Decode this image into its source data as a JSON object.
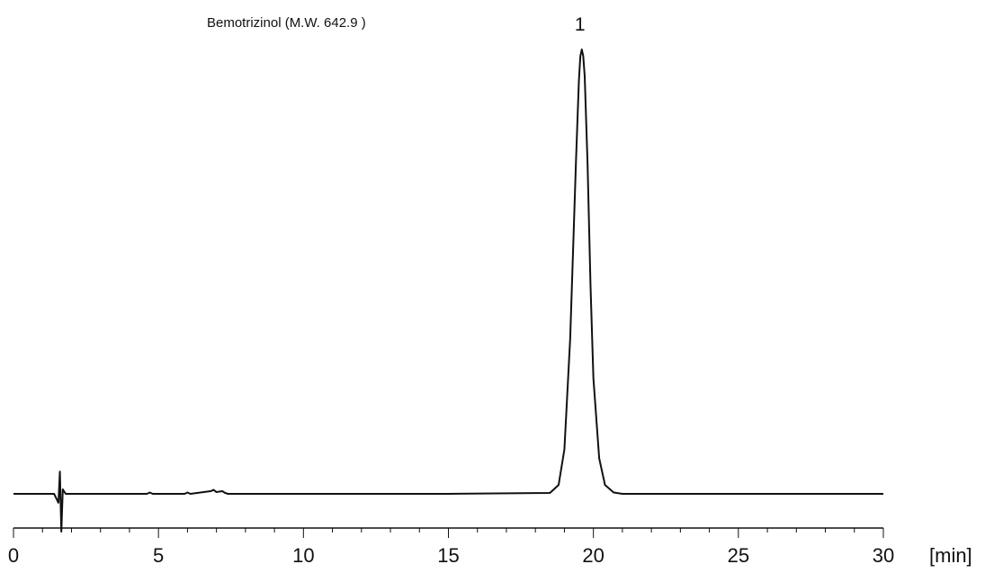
{
  "chart_data": {
    "type": "line",
    "compound_label": "Bemotrizinol (M.W. 642.9 )",
    "x_unit": "[min]",
    "xlim": [
      0,
      30
    ],
    "x_ticks": [
      0,
      5,
      10,
      15,
      20,
      25,
      30
    ],
    "x_minor_step": 1,
    "ylim": [
      -0.085,
      1.0
    ],
    "baseline": 0,
    "peaks": [
      {
        "label": "1",
        "time": 19.6,
        "height": 1.0
      }
    ],
    "series": [
      {
        "color": "#111111",
        "x": [
          0,
          1.4,
          1.55,
          1.6,
          1.65,
          1.7,
          1.8,
          2.0,
          4.6,
          4.7,
          4.8,
          5.9,
          6.0,
          6.1,
          6.8,
          6.9,
          7.0,
          7.1,
          7.2,
          7.3,
          7.4,
          10,
          15,
          18.5,
          18.8,
          19.0,
          19.2,
          19.4,
          19.5,
          19.55,
          19.6,
          19.65,
          19.7,
          19.8,
          19.9,
          20.0,
          20.2,
          20.4,
          20.7,
          21,
          25,
          30
        ],
        "y": [
          0,
          0,
          -0.02,
          0.05,
          -0.085,
          0.01,
          0,
          0,
          0,
          0.003,
          0,
          0,
          0.003,
          0,
          0.006,
          0.009,
          0.004,
          0.005,
          0.006,
          0.002,
          0,
          0,
          0,
          0.002,
          0.02,
          0.1,
          0.35,
          0.75,
          0.93,
          0.985,
          1.0,
          0.985,
          0.94,
          0.74,
          0.47,
          0.26,
          0.08,
          0.02,
          0.003,
          0,
          0,
          0
        ]
      }
    ]
  },
  "colors": {
    "line": "#111111",
    "axis": "#111111",
    "background": "#ffffff"
  }
}
